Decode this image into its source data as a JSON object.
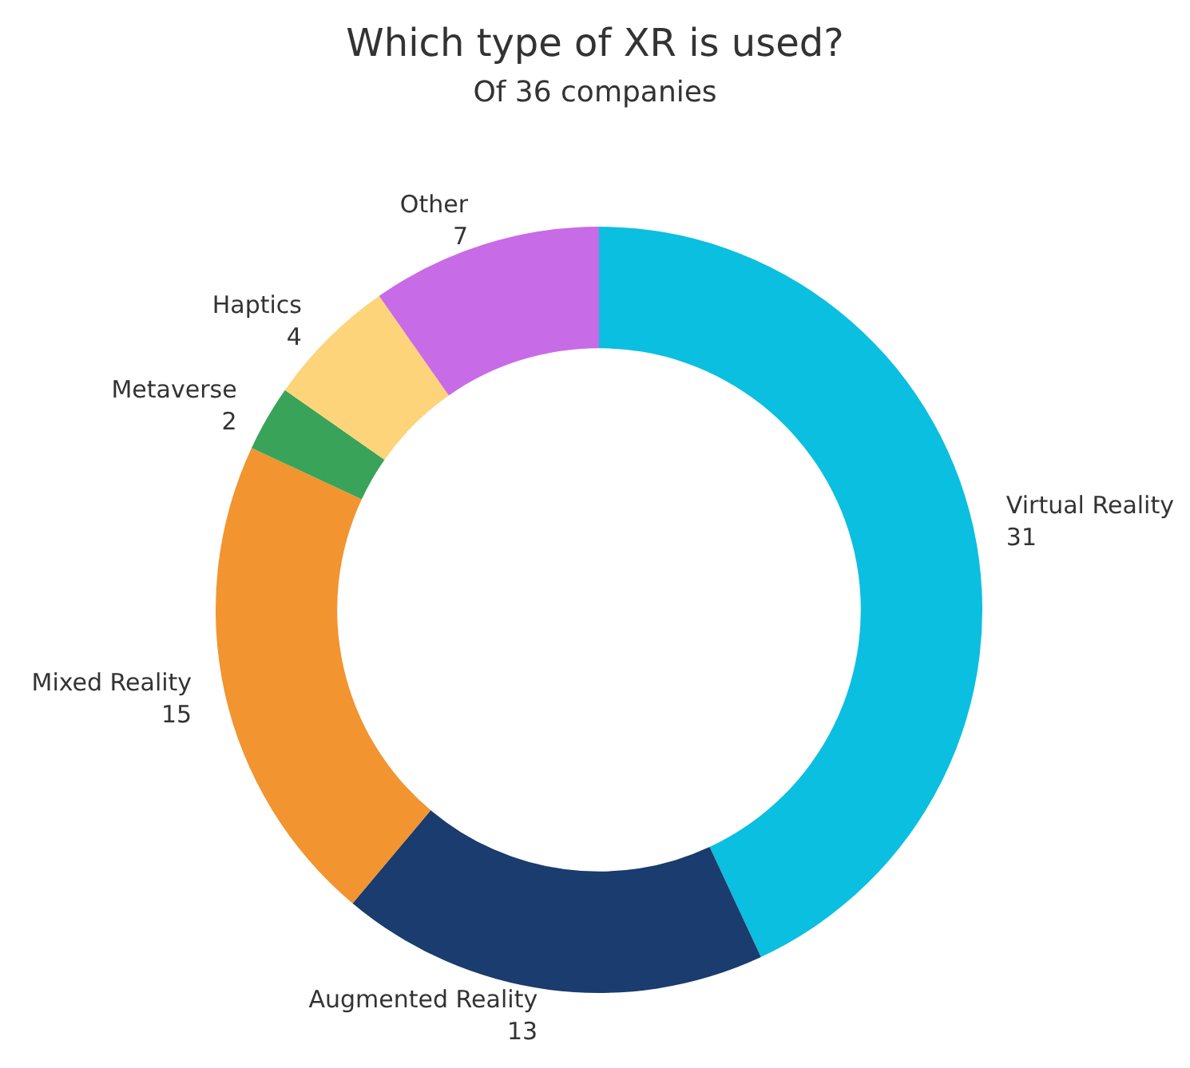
{
  "chart_data": {
    "type": "donut",
    "title": "Which type of XR is used?",
    "subtitle": "Of 36 companies",
    "categories": [
      "Virtual Reality",
      "Augmented Reality",
      "Mixed Reality",
      "Metaverse",
      "Haptics",
      "Other"
    ],
    "values": [
      31,
      13,
      15,
      2,
      4,
      7
    ],
    "colors": [
      "#0bbfe0",
      "#1a3c6e",
      "#f29430",
      "#3aa35a",
      "#fdd47a",
      "#c86be6"
    ],
    "data_labels": true
  }
}
